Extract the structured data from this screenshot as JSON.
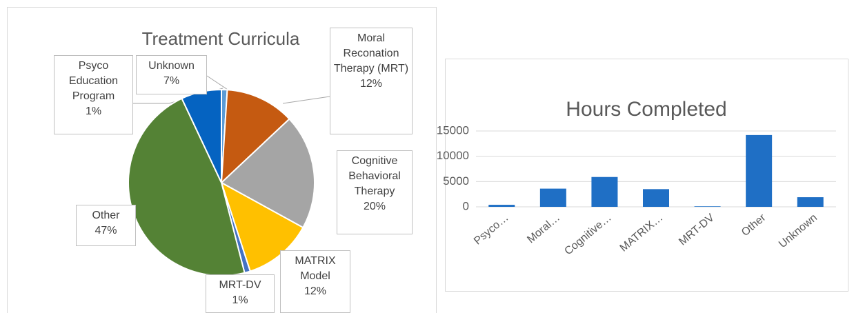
{
  "chart_data": [
    {
      "type": "pie",
      "title": "Treatment Curricula",
      "categories": [
        "Psyco Education Program",
        "Moral Reconation Therapy (MRT)",
        "Cognitive Behavioral Therapy",
        "MATRIX Model",
        "MRT-DV",
        "Other",
        "Unknown"
      ],
      "values": [
        1,
        12,
        20,
        12,
        1,
        47,
        7
      ],
      "value_labels": [
        "1%",
        "12%",
        "20%",
        "12%",
        "1%",
        "47%",
        "7%"
      ],
      "colors": [
        "#5b9bd5",
        "#c55a11",
        "#a5a5a5",
        "#ffc000",
        "#4472c4",
        "#548235",
        "#0563c1"
      ]
    },
    {
      "type": "bar",
      "title": "Hours Completed",
      "categories": [
        "Psyco…",
        "Moral…",
        "Cognitive…",
        "MATRIX…",
        "MRT-DV",
        "Other",
        "Unknown"
      ],
      "values": [
        400,
        3600,
        5900,
        3500,
        100,
        14200,
        1900
      ],
      "color": "#1f6fc5",
      "ylim": [
        0,
        15000
      ],
      "yticks": [
        0,
        5000,
        10000,
        15000
      ],
      "grid": true
    }
  ]
}
